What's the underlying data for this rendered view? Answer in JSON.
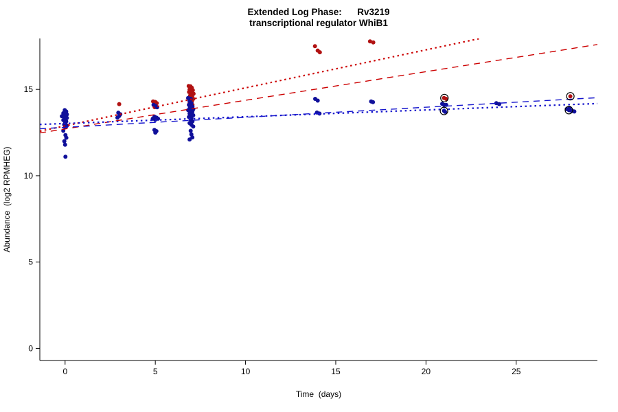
{
  "chart_data": {
    "type": "scatter",
    "title": "Extended Log Phase:      Rv3219",
    "subtitle": "transcriptional regulator WhiB1",
    "xlabel": "Time  (days)",
    "ylabel": "Abundance  (log2 RPMHEG)",
    "xlim": [
      -1.4,
      29.5
    ],
    "ylim": [
      -0.7,
      17.95
    ],
    "xticks": [
      0,
      5,
      10,
      15,
      20,
      25
    ],
    "yticks": [
      0,
      5,
      10,
      15
    ],
    "grid": false,
    "legend": "none",
    "axis_color": "#000000",
    "series": [
      {
        "name": "red",
        "marker": "filled-circle",
        "color": "#b11212",
        "points": [
          [
            0.0,
            13.0
          ],
          [
            0.08,
            12.92
          ],
          [
            3.0,
            14.15
          ],
          [
            4.88,
            14.3
          ],
          [
            5.0,
            14.27
          ],
          [
            5.08,
            14.2
          ],
          [
            4.95,
            14.12
          ],
          [
            5.03,
            14.05
          ],
          [
            4.97,
            13.97
          ],
          [
            6.85,
            15.2
          ],
          [
            6.95,
            15.18
          ],
          [
            7.02,
            15.1
          ],
          [
            6.9,
            15.0
          ],
          [
            7.08,
            14.95
          ],
          [
            6.87,
            14.85
          ],
          [
            7.0,
            14.8
          ],
          [
            7.12,
            14.75
          ],
          [
            6.93,
            14.65
          ],
          [
            7.04,
            14.6
          ],
          [
            6.88,
            14.5
          ],
          [
            7.1,
            14.45
          ],
          [
            6.97,
            14.38
          ],
          [
            7.03,
            14.3
          ],
          [
            6.9,
            14.2
          ],
          [
            7.06,
            14.1
          ],
          [
            6.95,
            14.0
          ],
          [
            7.0,
            13.9
          ],
          [
            7.08,
            13.82
          ],
          [
            13.85,
            17.5
          ],
          [
            14.0,
            17.25
          ],
          [
            14.12,
            17.15
          ],
          [
            16.9,
            17.78
          ],
          [
            17.08,
            17.72
          ],
          [
            21.0,
            14.5
          ],
          [
            21.12,
            14.45
          ],
          [
            28.0,
            14.6
          ]
        ]
      },
      {
        "name": "blue",
        "marker": "filled-circle",
        "color": "#10109a",
        "points": [
          [
            -0.18,
            13.45
          ],
          [
            -0.02,
            13.8
          ],
          [
            0.06,
            13.72
          ],
          [
            -0.1,
            13.62
          ],
          [
            0.1,
            13.55
          ],
          [
            0.0,
            13.5
          ],
          [
            -0.06,
            13.42
          ],
          [
            0.1,
            13.35
          ],
          [
            0.02,
            13.3
          ],
          [
            -0.1,
            13.22
          ],
          [
            0.06,
            13.15
          ],
          [
            0.0,
            13.06
          ],
          [
            -0.05,
            12.96
          ],
          [
            0.1,
            12.9
          ],
          [
            0.0,
            12.8
          ],
          [
            -0.1,
            12.6
          ],
          [
            0.02,
            12.35
          ],
          [
            0.07,
            12.2
          ],
          [
            -0.04,
            12.0
          ],
          [
            0.0,
            11.8
          ],
          [
            0.02,
            11.1
          ],
          [
            2.95,
            13.65
          ],
          [
            3.06,
            13.56
          ],
          [
            3.0,
            13.46
          ],
          [
            2.9,
            13.36
          ],
          [
            4.9,
            14.1
          ],
          [
            5.0,
            14.04
          ],
          [
            5.1,
            13.96
          ],
          [
            4.95,
            13.42
          ],
          [
            5.06,
            13.37
          ],
          [
            4.86,
            13.3
          ],
          [
            5.15,
            13.3
          ],
          [
            5.0,
            13.24
          ],
          [
            4.95,
            12.65
          ],
          [
            5.06,
            12.58
          ],
          [
            5.0,
            12.5
          ],
          [
            6.82,
            14.5
          ],
          [
            6.96,
            14.45
          ],
          [
            6.9,
            14.32
          ],
          [
            7.0,
            14.2
          ],
          [
            6.86,
            14.1
          ],
          [
            7.06,
            14.0
          ],
          [
            6.92,
            13.95
          ],
          [
            7.0,
            13.9
          ],
          [
            7.1,
            13.85
          ],
          [
            6.82,
            13.8
          ],
          [
            6.95,
            13.75
          ],
          [
            7.05,
            13.7
          ],
          [
            6.9,
            13.6
          ],
          [
            7.0,
            13.55
          ],
          [
            7.1,
            13.5
          ],
          [
            6.86,
            13.4
          ],
          [
            7.0,
            13.35
          ],
          [
            6.96,
            13.25
          ],
          [
            7.06,
            13.15
          ],
          [
            6.9,
            13.05
          ],
          [
            7.0,
            12.95
          ],
          [
            7.1,
            12.85
          ],
          [
            6.96,
            12.6
          ],
          [
            7.0,
            12.4
          ],
          [
            7.05,
            12.22
          ],
          [
            6.9,
            12.1
          ],
          [
            13.86,
            14.45
          ],
          [
            14.0,
            14.35
          ],
          [
            13.96,
            13.66
          ],
          [
            14.1,
            13.6
          ],
          [
            16.96,
            14.3
          ],
          [
            17.06,
            14.26
          ],
          [
            20.9,
            14.16
          ],
          [
            21.0,
            14.1
          ],
          [
            21.12,
            14.1
          ],
          [
            21.0,
            13.76
          ],
          [
            21.06,
            13.7
          ],
          [
            23.9,
            14.2
          ],
          [
            24.06,
            14.15
          ],
          [
            27.8,
            13.86
          ],
          [
            27.92,
            13.8
          ],
          [
            28.02,
            13.78
          ],
          [
            28.12,
            13.75
          ],
          [
            28.22,
            13.72
          ],
          [
            27.96,
            13.92
          ]
        ]
      }
    ],
    "highlighted_points": {
      "marker": "open-circle",
      "color": "#000000",
      "points": [
        [
          21.02,
          14.5
        ],
        [
          21.0,
          13.75
        ],
        [
          28.0,
          14.6
        ],
        [
          27.92,
          13.8
        ]
      ]
    },
    "trend_lines": [
      {
        "name": "red-dotted",
        "color": "#cc0000",
        "dash": "dotted",
        "from": [
          -1.4,
          12.58
        ],
        "to": [
          23.0,
          17.95
        ]
      },
      {
        "name": "red-dashed",
        "color": "#cc0000",
        "dash": "dashed",
        "from": [
          -1.4,
          12.48
        ],
        "to": [
          29.5,
          17.6
        ]
      },
      {
        "name": "blue-dotted",
        "color": "#1414cc",
        "dash": "dotted",
        "from": [
          -1.4,
          12.97
        ],
        "to": [
          29.5,
          14.18
        ]
      },
      {
        "name": "blue-dashed",
        "color": "#1414cc",
        "dash": "dashed",
        "from": [
          -1.4,
          12.72
        ],
        "to": [
          29.5,
          14.52
        ]
      }
    ]
  }
}
